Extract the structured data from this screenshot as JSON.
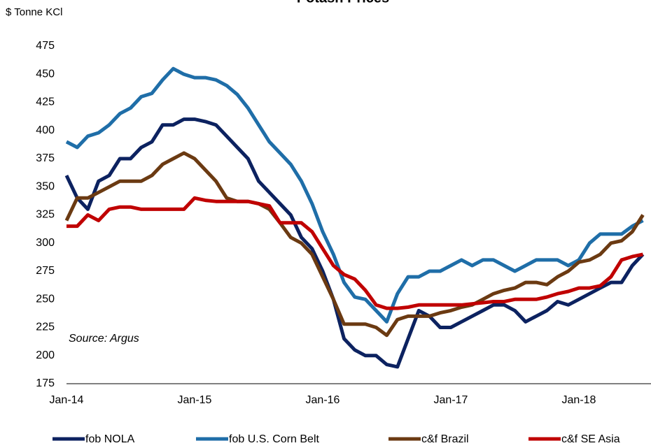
{
  "chart_data": {
    "type": "line",
    "title": "Potash Prices",
    "y_label": "$ Tonne KCl",
    "annotation": "Source:  Argus",
    "categories": [
      "Jan-14",
      null,
      null,
      null,
      null,
      null,
      null,
      null,
      null,
      null,
      null,
      null,
      "Jan-15",
      null,
      null,
      null,
      null,
      null,
      null,
      null,
      null,
      null,
      null,
      null,
      "Jan-16",
      null,
      null,
      null,
      null,
      null,
      null,
      null,
      null,
      null,
      null,
      null,
      "Jan-17",
      null,
      null,
      null,
      null,
      null,
      null,
      null,
      null,
      null,
      null,
      null,
      "Jan-18",
      null,
      null,
      null,
      null,
      null,
      null
    ],
    "ylim": [
      175,
      475
    ],
    "yticks": [
      175,
      200,
      225,
      250,
      275,
      300,
      325,
      350,
      375,
      400,
      425,
      450,
      475
    ],
    "legend": "bottom",
    "series": [
      {
        "name": "fob NOLA",
        "color": "#0c2260",
        "values": [
          360,
          340,
          330,
          355,
          360,
          375,
          375,
          385,
          390,
          405,
          405,
          410,
          410,
          408,
          405,
          395,
          385,
          375,
          355,
          345,
          335,
          325,
          305,
          295,
          275,
          250,
          215,
          205,
          200,
          200,
          192,
          190,
          215,
          240,
          235,
          225,
          225,
          230,
          235,
          240,
          245,
          245,
          240,
          230,
          235,
          240,
          248,
          245,
          250,
          255,
          260,
          265,
          265,
          280,
          290
        ]
      },
      {
        "name": "fob U.S. Corn Belt",
        "color": "#1f6ea8",
        "values": [
          390,
          385,
          395,
          398,
          405,
          415,
          420,
          430,
          433,
          445,
          455,
          450,
          447,
          447,
          445,
          440,
          432,
          420,
          405,
          390,
          380,
          370,
          355,
          335,
          310,
          290,
          265,
          252,
          250,
          240,
          230,
          255,
          270,
          270,
          275,
          275,
          280,
          285,
          280,
          285,
          285,
          280,
          275,
          280,
          285,
          285,
          285,
          280,
          285,
          300,
          308,
          308,
          308,
          315,
          320
        ]
      },
      {
        "name": "c&f Brazil",
        "color": "#6b3a12",
        "values": [
          320,
          340,
          340,
          345,
          350,
          355,
          355,
          355,
          360,
          370,
          375,
          380,
          375,
          365,
          355,
          340,
          337,
          337,
          335,
          330,
          318,
          305,
          300,
          290,
          270,
          250,
          228,
          228,
          228,
          225,
          218,
          232,
          235,
          235,
          235,
          238,
          240,
          243,
          245,
          250,
          255,
          258,
          260,
          265,
          265,
          263,
          270,
          275,
          283,
          285,
          290,
          300,
          302,
          310,
          325
        ]
      },
      {
        "name": "c&f SE Asia",
        "color": "#c00000",
        "values": [
          315,
          315,
          325,
          320,
          330,
          332,
          332,
          330,
          330,
          330,
          330,
          330,
          340,
          338,
          337,
          337,
          337,
          337,
          335,
          333,
          318,
          318,
          318,
          310,
          295,
          280,
          272,
          268,
          258,
          245,
          242,
          242,
          243,
          245,
          245,
          245,
          245,
          245,
          246,
          247,
          248,
          248,
          250,
          250,
          250,
          252,
          255,
          257,
          260,
          260,
          262,
          270,
          285,
          288,
          290
        ]
      }
    ]
  }
}
